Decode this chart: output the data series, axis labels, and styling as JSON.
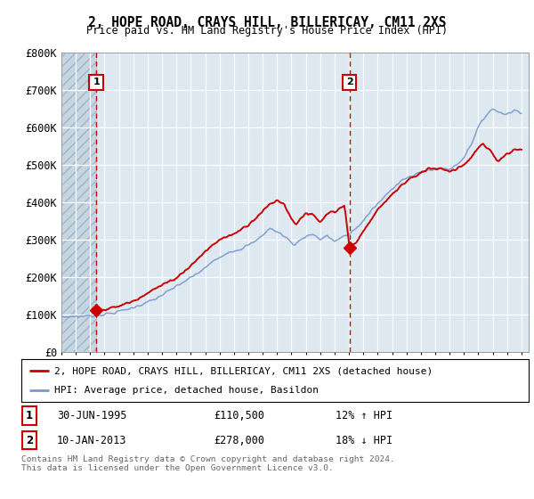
{
  "title": "2, HOPE ROAD, CRAYS HILL, BILLERICAY, CM11 2XS",
  "subtitle": "Price paid vs. HM Land Registry's House Price Index (HPI)",
  "ylim": [
    0,
    800000
  ],
  "yticks": [
    0,
    100000,
    200000,
    300000,
    400000,
    500000,
    600000,
    700000,
    800000
  ],
  "ytick_labels": [
    "£0",
    "£100K",
    "£200K",
    "£300K",
    "£400K",
    "£500K",
    "£600K",
    "£700K",
    "£800K"
  ],
  "xlim_start": 1993.0,
  "xlim_end": 2025.5,
  "hatch_end": 1995.42,
  "sale1_date": 1995.42,
  "sale1_price": 110500,
  "sale2_date": 2013.04,
  "sale2_price": 278000,
  "legend_line1": "2, HOPE ROAD, CRAYS HILL, BILLERICAY, CM11 2XS (detached house)",
  "legend_line2": "HPI: Average price, detached house, Basildon",
  "table_row1": [
    "1",
    "30-JUN-1995",
    "£110,500",
    "12% ↑ HPI"
  ],
  "table_row2": [
    "2",
    "10-JAN-2013",
    "£278,000",
    "18% ↓ HPI"
  ],
  "footnote": "Contains HM Land Registry data © Crown copyright and database right 2024.\nThis data is licensed under the Open Government Licence v3.0.",
  "red_color": "#cc0000",
  "blue_color": "#7799cc",
  "background_color": "#dde8f0",
  "marker_color": "#cc0000"
}
